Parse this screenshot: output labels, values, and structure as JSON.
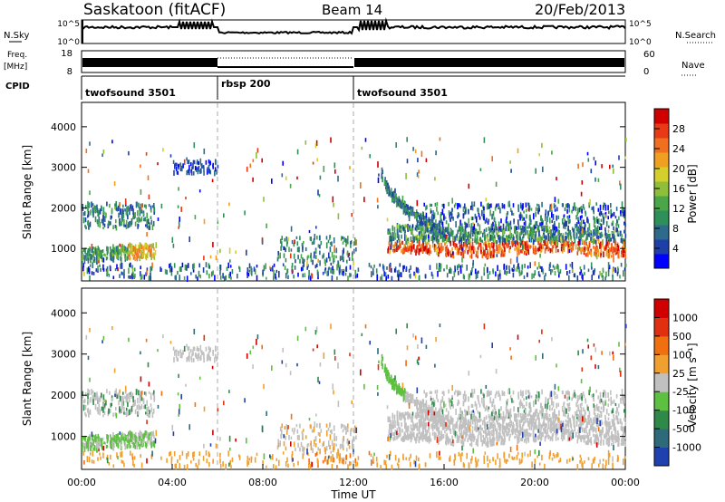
{
  "header": {
    "station": "Saskatoon (fitACF)",
    "beam": "Beam 14",
    "date": "20/Feb/2013"
  },
  "top_panels": {
    "nsky_label": "N.Sky",
    "nsearch_label": "N.Search",
    "freq_label_line1": "Freq.",
    "freq_label_line2": "[MHz]",
    "nave_label": "Nave",
    "cpid_label": "CPID",
    "nsky_ticks": [
      "10^5",
      "10^0"
    ],
    "nsearch_ticks": [
      "10^5",
      "10^0"
    ],
    "freq_ticks": [
      "18",
      "8"
    ],
    "nave_ticks": [
      "60",
      "0"
    ],
    "cpid_segments": [
      {
        "label": "twofsound 3501",
        "start_hour": 0,
        "end_hour": 6
      },
      {
        "label": "rbsp 200",
        "start_hour": 6,
        "end_hour": 12
      },
      {
        "label": "twofsound 3501",
        "start_hour": 12,
        "end_hour": 24
      }
    ]
  },
  "chart_data": [
    {
      "type": "heatmap",
      "name": "power",
      "ylabel": "Slant Range [km]",
      "ylim": [
        200,
        4600
      ],
      "yticks": [
        1000,
        2000,
        3000,
        4000
      ],
      "xlim": [
        0,
        24
      ],
      "colorbar": {
        "label": "Power [dB]",
        "ticks": [
          "28",
          "24",
          "20",
          "16",
          "12",
          "8",
          "4"
        ],
        "colors": [
          "#0000ff",
          "#1e3fa8",
          "#2e6a8c",
          "#2f8f5a",
          "#4aa648",
          "#8fbf3a",
          "#d4cf2a",
          "#f0a020",
          "#f07020",
          "#e83a14",
          "#d00000"
        ]
      }
    },
    {
      "type": "heatmap",
      "name": "velocity",
      "ylabel": "Slant Range [km]",
      "ylim": [
        200,
        4600
      ],
      "yticks": [
        1000,
        2000,
        3000,
        4000
      ],
      "xlim": [
        0,
        24
      ],
      "xlabel": "Time UT",
      "xticks": [
        "00:00",
        "04:00",
        "08:00",
        "12:00",
        "16:00",
        "20:00",
        "00:00"
      ],
      "colorbar": {
        "label": "Velocity [m s⁻¹]",
        "ticks": [
          "1000",
          "500",
          "100",
          "25",
          "-25",
          "-100",
          "-500",
          "-1000"
        ],
        "colors": [
          "#2040b0",
          "#2e6a7a",
          "#2f8a4a",
          "#5ec040",
          "#c0c0c0",
          "#f0a030",
          "#f07010",
          "#e03010",
          "#d00000"
        ]
      }
    }
  ]
}
